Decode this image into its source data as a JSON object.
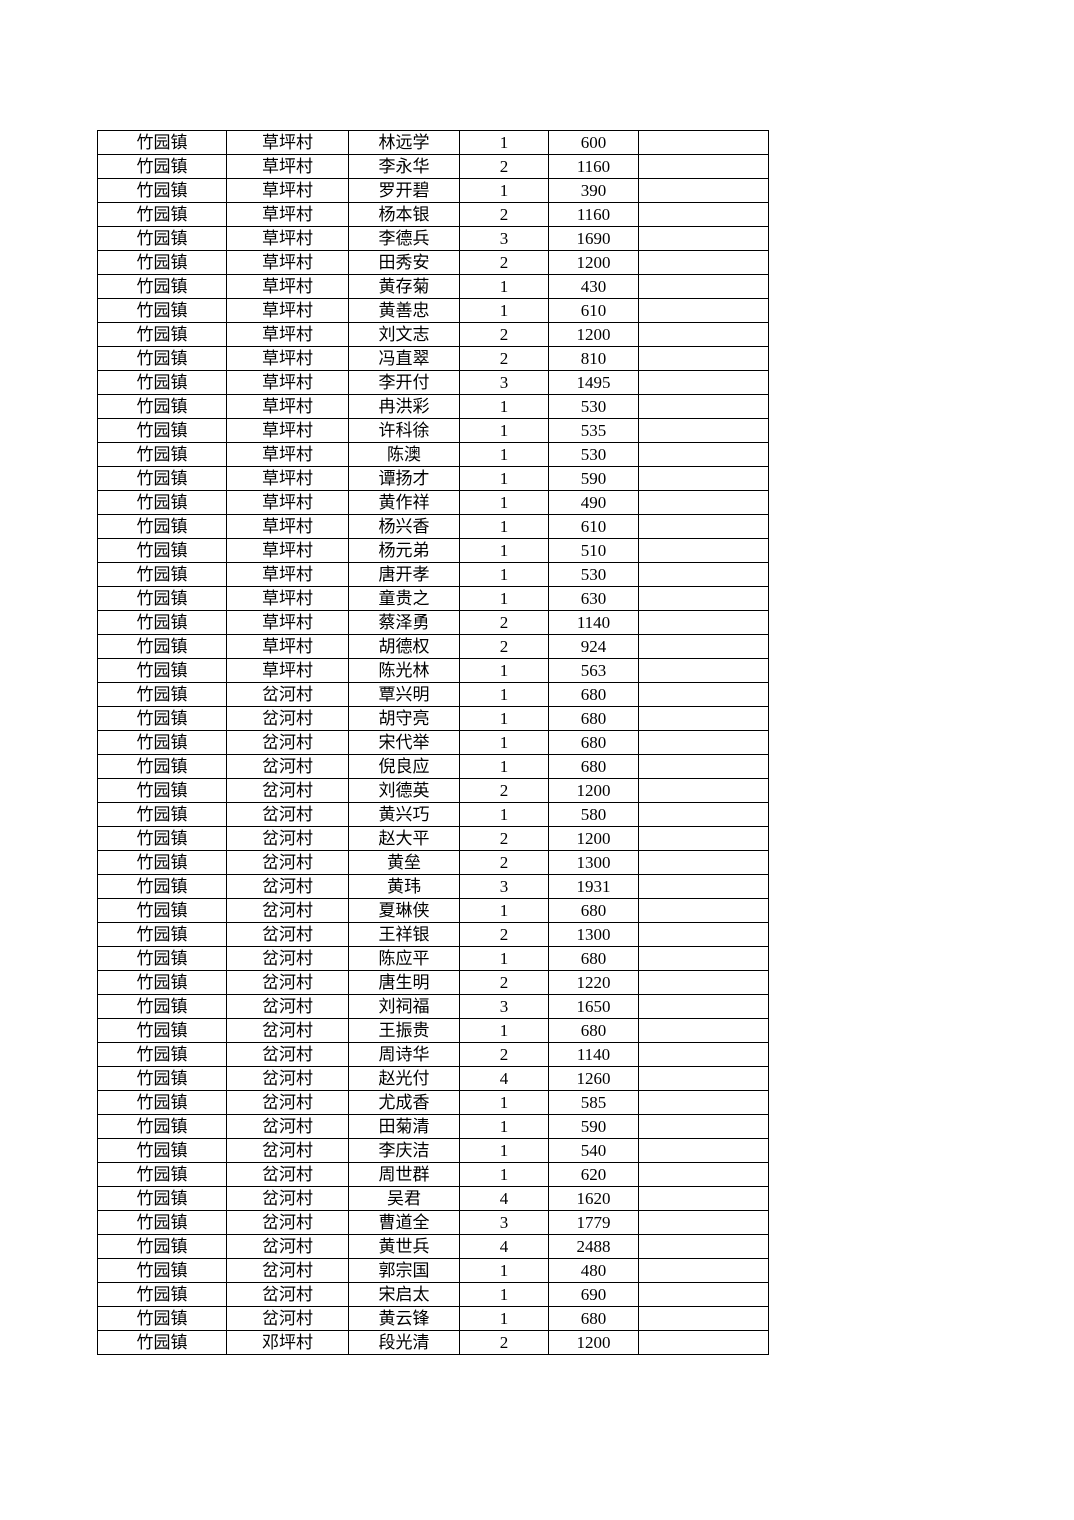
{
  "table": {
    "rows": [
      [
        "竹园镇",
        "草坪村",
        "林远学",
        "1",
        "600",
        ""
      ],
      [
        "竹园镇",
        "草坪村",
        "李永华",
        "2",
        "1160",
        ""
      ],
      [
        "竹园镇",
        "草坪村",
        "罗开碧",
        "1",
        "390",
        ""
      ],
      [
        "竹园镇",
        "草坪村",
        "杨本银",
        "2",
        "1160",
        ""
      ],
      [
        "竹园镇",
        "草坪村",
        "李德兵",
        "3",
        "1690",
        ""
      ],
      [
        "竹园镇",
        "草坪村",
        "田秀安",
        "2",
        "1200",
        ""
      ],
      [
        "竹园镇",
        "草坪村",
        "黄存菊",
        "1",
        "430",
        ""
      ],
      [
        "竹园镇",
        "草坪村",
        "黄善忠",
        "1",
        "610",
        ""
      ],
      [
        "竹园镇",
        "草坪村",
        "刘文志",
        "2",
        "1200",
        ""
      ],
      [
        "竹园镇",
        "草坪村",
        "冯直翠",
        "2",
        "810",
        ""
      ],
      [
        "竹园镇",
        "草坪村",
        "李开付",
        "3",
        "1495",
        ""
      ],
      [
        "竹园镇",
        "草坪村",
        "冉洪彩",
        "1",
        "530",
        ""
      ],
      [
        "竹园镇",
        "草坪村",
        "许科徐",
        "1",
        "535",
        ""
      ],
      [
        "竹园镇",
        "草坪村",
        "陈澳",
        "1",
        "530",
        ""
      ],
      [
        "竹园镇",
        "草坪村",
        "谭扬才",
        "1",
        "590",
        ""
      ],
      [
        "竹园镇",
        "草坪村",
        "黄作祥",
        "1",
        "490",
        ""
      ],
      [
        "竹园镇",
        "草坪村",
        "杨兴香",
        "1",
        "610",
        ""
      ],
      [
        "竹园镇",
        "草坪村",
        "杨元弟",
        "1",
        "510",
        ""
      ],
      [
        "竹园镇",
        "草坪村",
        "唐开孝",
        "1",
        "530",
        ""
      ],
      [
        "竹园镇",
        "草坪村",
        "童贵之",
        "1",
        "630",
        ""
      ],
      [
        "竹园镇",
        "草坪村",
        "蔡泽勇",
        "2",
        "1140",
        ""
      ],
      [
        "竹园镇",
        "草坪村",
        "胡德权",
        "2",
        "924",
        ""
      ],
      [
        "竹园镇",
        "草坪村",
        "陈光林",
        "1",
        "563",
        ""
      ],
      [
        "竹园镇",
        "岔河村",
        "覃兴明",
        "1",
        "680",
        ""
      ],
      [
        "竹园镇",
        "岔河村",
        "胡守亮",
        "1",
        "680",
        ""
      ],
      [
        "竹园镇",
        "岔河村",
        "宋代举",
        "1",
        "680",
        ""
      ],
      [
        "竹园镇",
        "岔河村",
        "倪良应",
        "1",
        "680",
        ""
      ],
      [
        "竹园镇",
        "岔河村",
        "刘德英",
        "2",
        "1200",
        ""
      ],
      [
        "竹园镇",
        "岔河村",
        "黄兴巧",
        "1",
        "580",
        ""
      ],
      [
        "竹园镇",
        "岔河村",
        "赵大平",
        "2",
        "1200",
        ""
      ],
      [
        "竹园镇",
        "岔河村",
        "黄垒",
        "2",
        "1300",
        ""
      ],
      [
        "竹园镇",
        "岔河村",
        "黄玮",
        "3",
        "1931",
        ""
      ],
      [
        "竹园镇",
        "岔河村",
        "夏琳侠",
        "1",
        "680",
        ""
      ],
      [
        "竹园镇",
        "岔河村",
        "王祥银",
        "2",
        "1300",
        ""
      ],
      [
        "竹园镇",
        "岔河村",
        "陈应平",
        "1",
        "680",
        ""
      ],
      [
        "竹园镇",
        "岔河村",
        "唐生明",
        "2",
        "1220",
        ""
      ],
      [
        "竹园镇",
        "岔河村",
        "刘祠福",
        "3",
        "1650",
        ""
      ],
      [
        "竹园镇",
        "岔河村",
        "王振贵",
        "1",
        "680",
        ""
      ],
      [
        "竹园镇",
        "岔河村",
        "周诗华",
        "2",
        "1140",
        ""
      ],
      [
        "竹园镇",
        "岔河村",
        "赵光付",
        "4",
        "1260",
        ""
      ],
      [
        "竹园镇",
        "岔河村",
        "尤成香",
        "1",
        "585",
        ""
      ],
      [
        "竹园镇",
        "岔河村",
        "田菊清",
        "1",
        "590",
        ""
      ],
      [
        "竹园镇",
        "岔河村",
        "李庆洁",
        "1",
        "540",
        ""
      ],
      [
        "竹园镇",
        "岔河村",
        "周世群",
        "1",
        "620",
        ""
      ],
      [
        "竹园镇",
        "岔河村",
        "吴君",
        "4",
        "1620",
        ""
      ],
      [
        "竹园镇",
        "岔河村",
        "曹道全",
        "3",
        "1779",
        ""
      ],
      [
        "竹园镇",
        "岔河村",
        "黄世兵",
        "4",
        "2488",
        ""
      ],
      [
        "竹园镇",
        "岔河村",
        "郭宗国",
        "1",
        "480",
        ""
      ],
      [
        "竹园镇",
        "岔河村",
        "宋启太",
        "1",
        "690",
        ""
      ],
      [
        "竹园镇",
        "岔河村",
        "黄云锋",
        "1",
        "680",
        ""
      ],
      [
        "竹园镇",
        "邓坪村",
        "段光清",
        "2",
        "1200",
        ""
      ]
    ]
  }
}
